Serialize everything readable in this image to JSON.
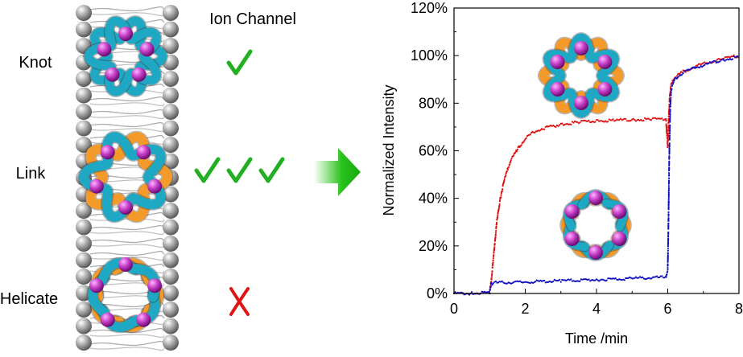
{
  "left_panel": {
    "column_header": "Ion Channel",
    "rows": [
      {
        "label": "Knot",
        "mark": "check",
        "mark_count": 1,
        "structure": "pentafoil-knot"
      },
      {
        "label": "Link",
        "mark": "check",
        "mark_count": 3,
        "structure": "linked-rings"
      },
      {
        "label": "Helicate",
        "mark": "cross",
        "mark_count": 1,
        "structure": "circular-helicate"
      }
    ],
    "colors": {
      "strand_a": "#1fa8c4",
      "strand_b": "#f39a2a",
      "metal": "#c640c8",
      "check": "#22b022",
      "cross": "#e01414",
      "arrow": "#27c21a",
      "lipid_head": "#a8a8a8"
    }
  },
  "chart_data": {
    "type": "scatter",
    "xlabel": "Time /min",
    "ylabel": "Normalized  Intensity",
    "xlim": [
      0,
      8
    ],
    "ylim": [
      0,
      120
    ],
    "x_ticks": [
      0,
      2,
      4,
      6,
      8
    ],
    "y_ticks": [
      0,
      20,
      40,
      60,
      80,
      100,
      120
    ],
    "y_tick_labels": [
      "0%",
      "20%",
      "40%",
      "60%",
      "80%",
      "100%",
      "120%"
    ],
    "grid": false,
    "series": [
      {
        "color": "#e01010",
        "points": [
          [
            0,
            0
          ],
          [
            0.5,
            0
          ],
          [
            1.0,
            0.5
          ],
          [
            1.05,
            6
          ],
          [
            1.1,
            14
          ],
          [
            1.15,
            22
          ],
          [
            1.2,
            30
          ],
          [
            1.3,
            40
          ],
          [
            1.4,
            47
          ],
          [
            1.5,
            52
          ],
          [
            1.6,
            56
          ],
          [
            1.8,
            61
          ],
          [
            2.0,
            65
          ],
          [
            2.2,
            67.5
          ],
          [
            2.5,
            69.5
          ],
          [
            3.0,
            71
          ],
          [
            3.5,
            72
          ],
          [
            4.0,
            72.5
          ],
          [
            4.5,
            72.8
          ],
          [
            5.0,
            73
          ],
          [
            5.5,
            73.2
          ],
          [
            5.95,
            73.3
          ],
          [
            6.0,
            62
          ],
          [
            6.03,
            75
          ],
          [
            6.06,
            84
          ],
          [
            6.1,
            88
          ],
          [
            6.2,
            91
          ],
          [
            6.4,
            93
          ],
          [
            6.7,
            95
          ],
          [
            7.0,
            96.5
          ],
          [
            7.5,
            98.5
          ],
          [
            8.0,
            100
          ]
        ]
      },
      {
        "color": "#1010c0",
        "points": [
          [
            0,
            0
          ],
          [
            0.5,
            0
          ],
          [
            1.0,
            0.5
          ],
          [
            1.05,
            4
          ],
          [
            1.1,
            4.5
          ],
          [
            2,
            4.8
          ],
          [
            3,
            5.3
          ],
          [
            4,
            5.8
          ],
          [
            5,
            6.3
          ],
          [
            5.95,
            6.8
          ],
          [
            6.0,
            10
          ],
          [
            6.02,
            30
          ],
          [
            6.04,
            55
          ],
          [
            6.07,
            78
          ],
          [
            6.1,
            86
          ],
          [
            6.2,
            90
          ],
          [
            6.4,
            92.5
          ],
          [
            6.7,
            94.5
          ],
          [
            7.0,
            96
          ],
          [
            7.5,
            98
          ],
          [
            8.0,
            99.5
          ]
        ]
      }
    ]
  }
}
